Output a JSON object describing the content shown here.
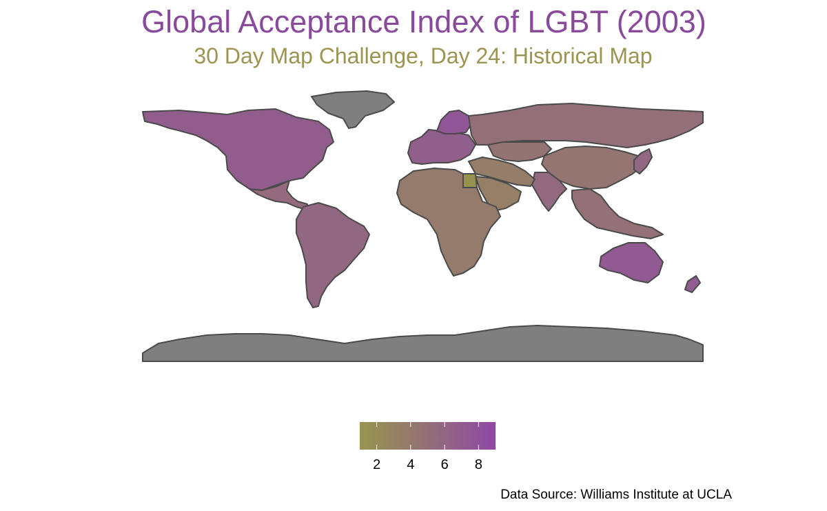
{
  "title": "Global Acceptance Index of LGBT (2003)",
  "subtitle": "30 Day Map Challenge, Day 24: Historical Map",
  "source": "Data Source: Williams Institute at UCLA",
  "legend": {
    "min": 1.0,
    "max": 9.0,
    "ticks": [
      "2",
      "4",
      "6",
      "8"
    ],
    "tick_values": [
      2,
      4,
      6,
      8
    ],
    "color_low": "#97964b",
    "color_high": "#8f48a6"
  },
  "colors": {
    "title": "#8a4a9c",
    "subtitle": "#9c9450",
    "no_data": "#7f7f7f",
    "border": "#4a4a4a"
  },
  "regions": [
    {
      "name": "North America",
      "value": 6.8
    },
    {
      "name": "Greenland",
      "value": null
    },
    {
      "name": "Central America",
      "value": 5.4
    },
    {
      "name": "South America",
      "value": 5.8
    },
    {
      "name": "Europe",
      "value": 6.6
    },
    {
      "name": "Scandinavia",
      "value": 7.6
    },
    {
      "name": "Russia",
      "value": 5.0
    },
    {
      "name": "Central Asia",
      "value": 4.6
    },
    {
      "name": "China",
      "value": 4.4
    },
    {
      "name": "India",
      "value": 5.6
    },
    {
      "name": "Middle East",
      "value": 3.6
    },
    {
      "name": "Arabia",
      "value": 3.4
    },
    {
      "name": "Egypt",
      "value": 1.4
    },
    {
      "name": "Africa",
      "value": 3.8
    },
    {
      "name": "Southeast Asia",
      "value": 4.8
    },
    {
      "name": "Japan",
      "value": 5.8
    },
    {
      "name": "Australia",
      "value": 7.2
    },
    {
      "name": "New Zealand",
      "value": 7.0
    },
    {
      "name": "Antarctica",
      "value": null
    }
  ]
}
